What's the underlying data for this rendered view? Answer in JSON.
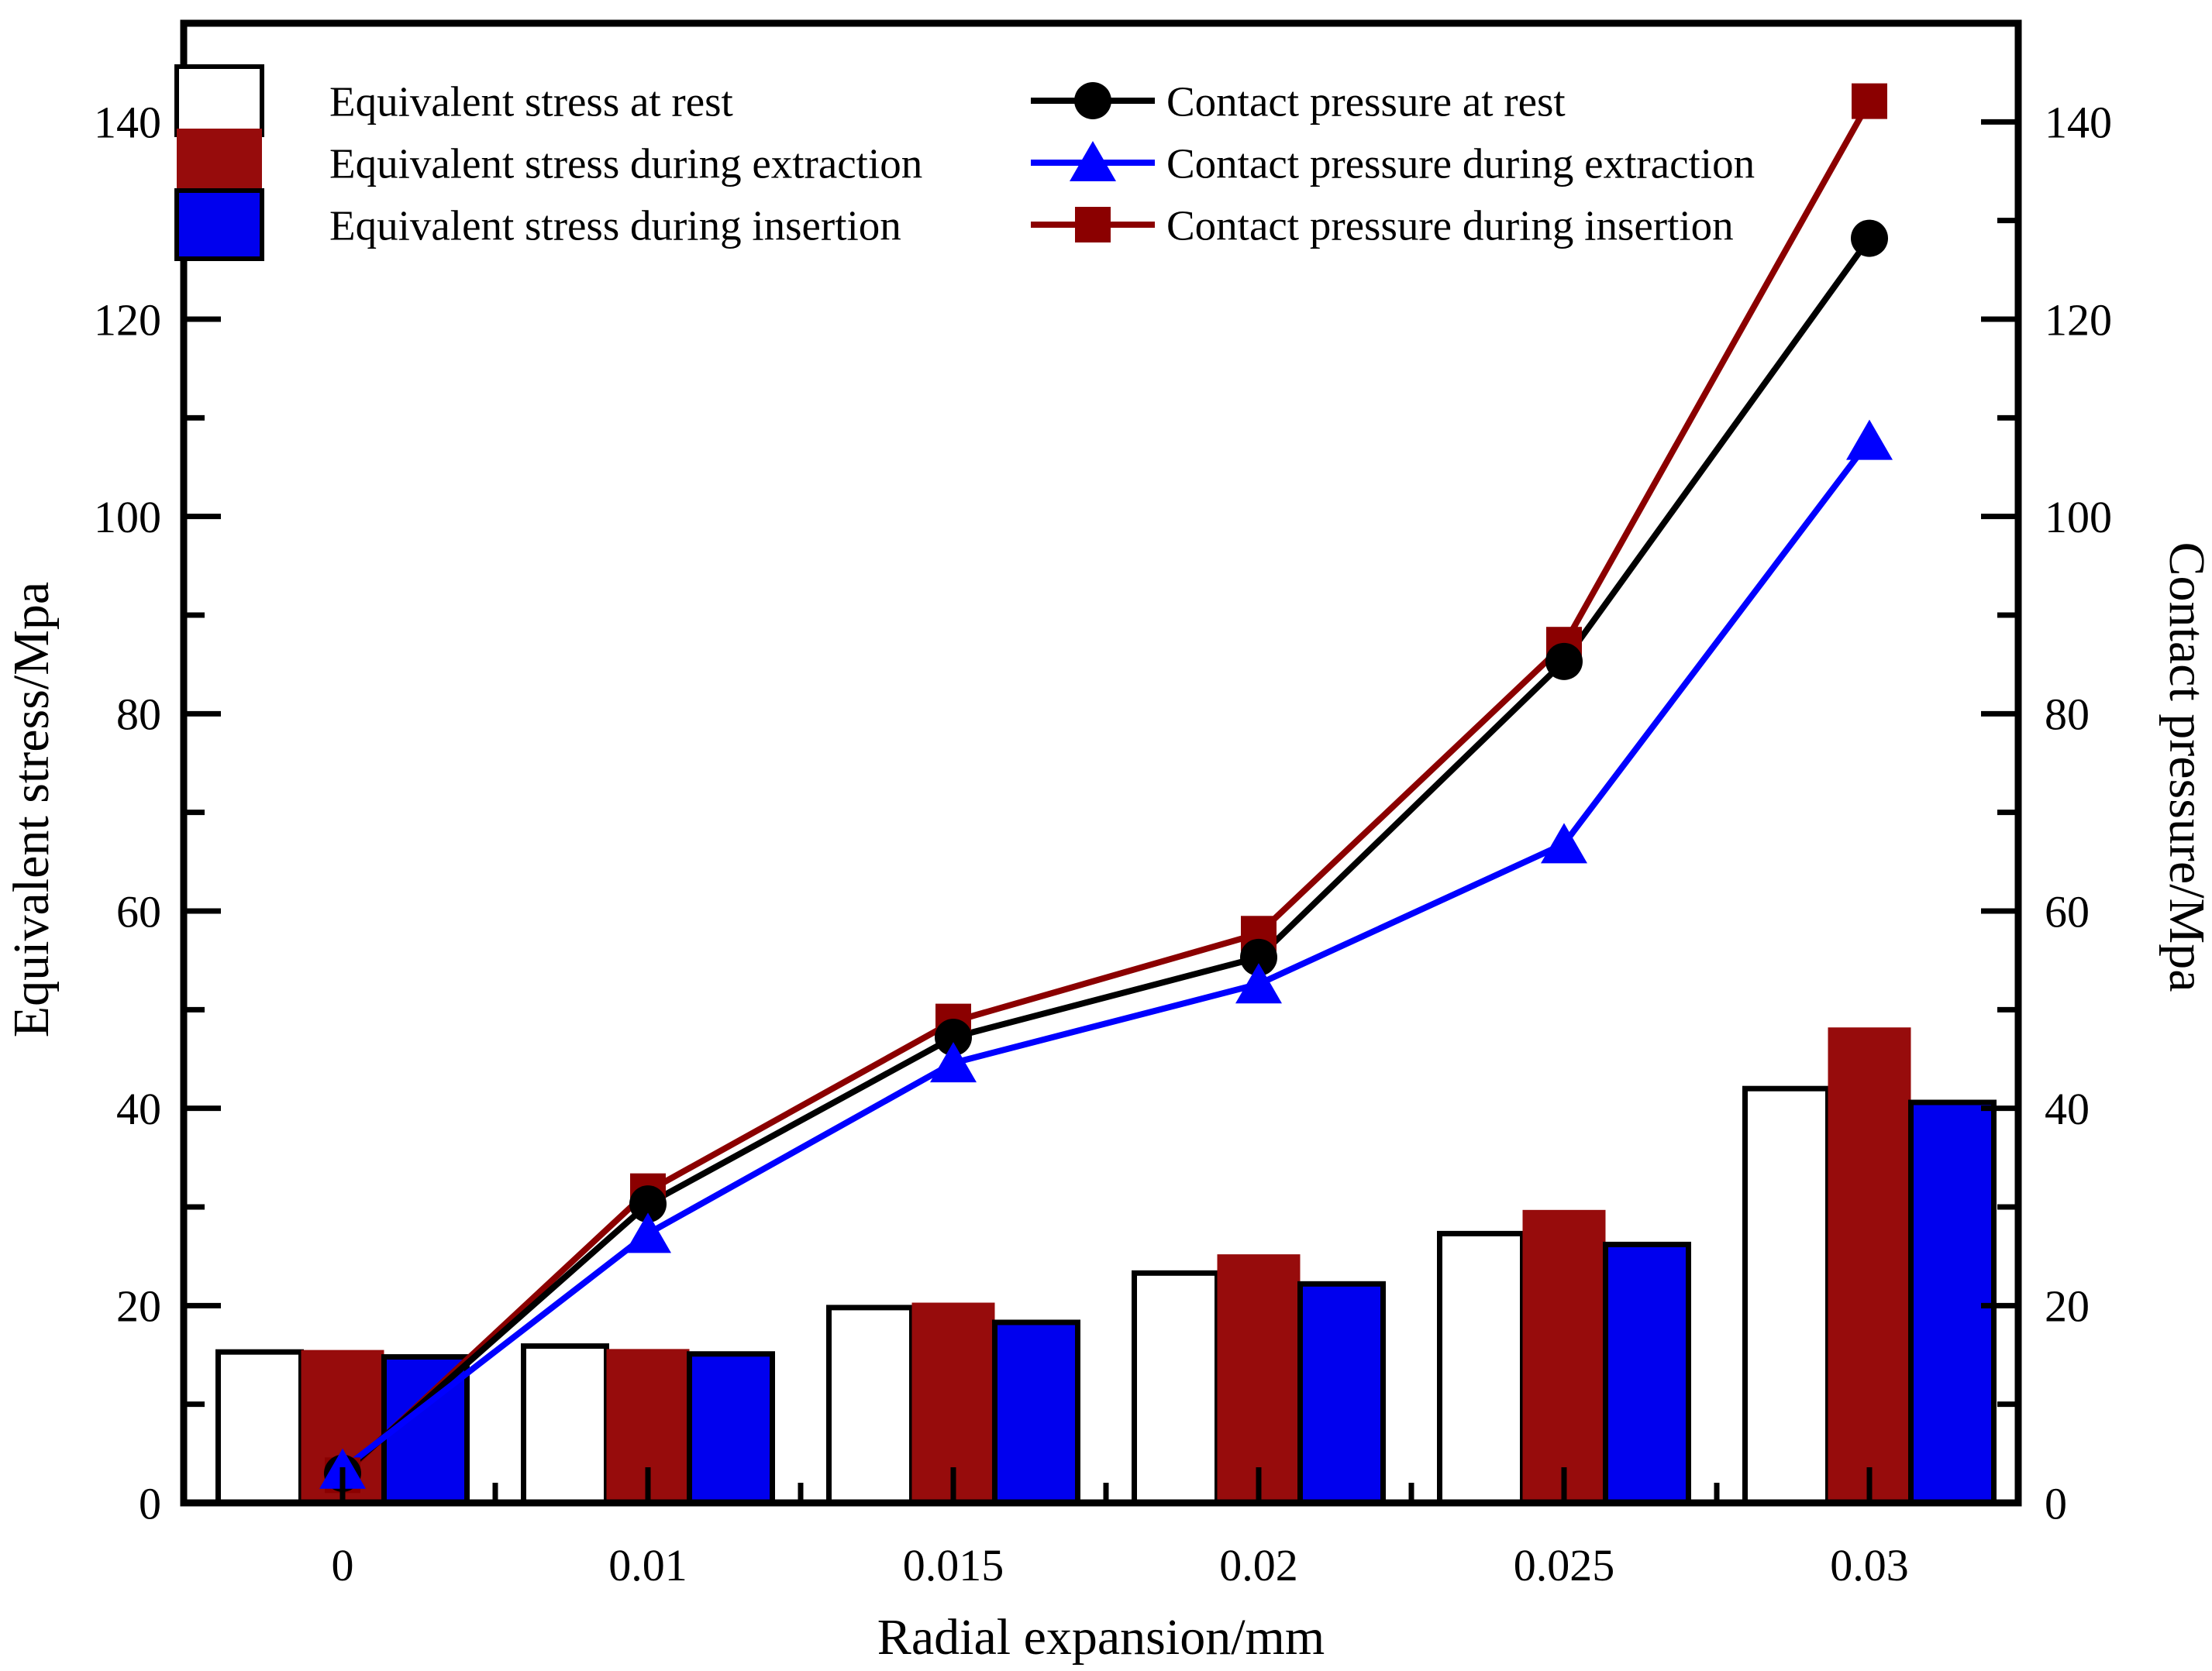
{
  "chart_data": {
    "type": "combo_bar_line_dual_axis",
    "title": "",
    "xlabel": "Radial expansion/mm",
    "ylabel_left": "Equivalent stress/Mpa",
    "ylabel_right": "Contact pressure/Mpa",
    "categories": [
      "0",
      "0.01",
      "0.015",
      "0.02",
      "0.025",
      "0.03"
    ],
    "ylim": [
      0,
      150
    ],
    "y_major_ticks": [
      0,
      20,
      40,
      60,
      80,
      100,
      120,
      140
    ],
    "y_minor_step": 10,
    "grid": false,
    "legend_position": "top-left-inside",
    "colors": {
      "bar_rest_fill": "#FFFFFF",
      "bar_extraction_fill": "#970C0C",
      "bar_insertion_fill": "#0000EE",
      "bar_border": "#000000",
      "line_rest": "#000000",
      "line_extraction": "#0000FF",
      "line_insertion": "#8B0000"
    },
    "bar_series": [
      {
        "name": "Equivalent stress at rest",
        "axis": "left",
        "fill": "#FFFFFF",
        "border": "#000000",
        "values": [
          15.3,
          15.9,
          19.8,
          23.3,
          27.3,
          42.0
        ]
      },
      {
        "name": "Equivalent stress during extraction",
        "axis": "left",
        "fill": "#970C0C",
        "border": "none",
        "values": [
          15.5,
          15.6,
          20.3,
          25.2,
          29.7,
          48.2
        ]
      },
      {
        "name": "Equivalent stress during insertion",
        "axis": "left",
        "fill": "#0000EE",
        "border": "#000000",
        "values": [
          14.8,
          15.1,
          18.3,
          22.2,
          26.2,
          40.6
        ]
      }
    ],
    "line_series": [
      {
        "name": "Contact pressure at rest",
        "axis": "right",
        "color": "#000000",
        "marker": "circle",
        "values": [
          3.0,
          30.3,
          47.2,
          55.3,
          85.3,
          128.2
        ]
      },
      {
        "name": "Contact pressure during extraction",
        "axis": "right",
        "color": "#0000FF",
        "marker": "triangle",
        "values": [
          3.4,
          27.3,
          44.6,
          52.6,
          66.8,
          107.7
        ]
      },
      {
        "name": "Contact pressure during insertion",
        "axis": "right",
        "color": "#8B0000",
        "marker": "square",
        "values": [
          2.8,
          31.6,
          48.8,
          57.7,
          87.0,
          142.1
        ]
      }
    ],
    "legend": {
      "col1": [
        {
          "swatch": "box-white",
          "label": "Equivalent stress at rest"
        },
        {
          "swatch": "box-darkred",
          "label": "Equivalent stress during extraction"
        },
        {
          "swatch": "box-blue",
          "label": "Equivalent stress during insertion"
        }
      ],
      "col2": [
        {
          "swatch": "line-circle-black",
          "label": "Contact pressure at rest"
        },
        {
          "swatch": "line-triangle-blue",
          "label": "Contact pressure during extraction"
        },
        {
          "swatch": "line-square-darkred",
          "label": "Contact pressure during insertion"
        }
      ]
    }
  }
}
